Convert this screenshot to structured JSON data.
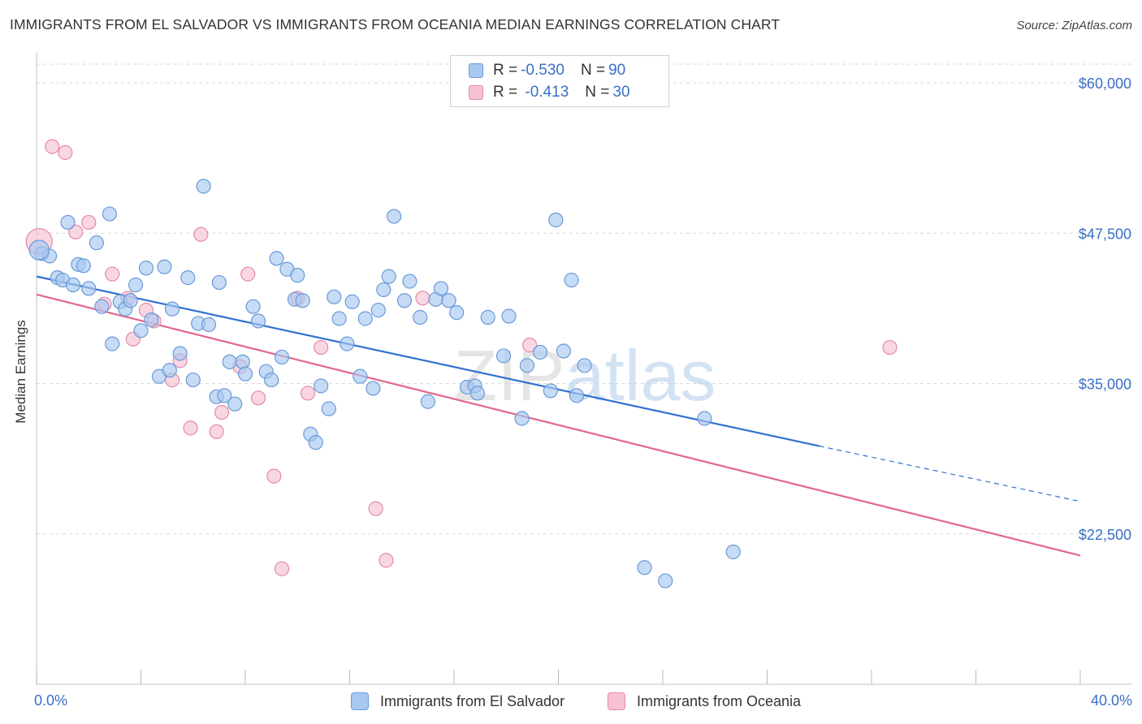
{
  "title": "IMMIGRANTS FROM EL SALVADOR VS IMMIGRANTS FROM OCEANIA MEDIAN EARNINGS CORRELATION CHART",
  "source": "Source: ZipAtlas.com",
  "watermark": "ZIPatlas",
  "legend_top": {
    "rows": [
      {
        "r_label": "R = ",
        "r_value": "-0.530",
        "n_label": "N = ",
        "n_value": "90",
        "color": "#a8c8f0"
      },
      {
        "r_label": "R = ",
        "r_value": " -0.413",
        "n_label": "N = ",
        "n_value": "30",
        "color": "#f6b8cb"
      }
    ]
  },
  "colors": {
    "blue_fill": "#a8c8f0",
    "blue_stroke": "#6a9ad8",
    "blue_line": "#2f72d0",
    "pink_fill": "#f6c2d3",
    "pink_stroke": "#e48aa8",
    "pink_line": "#e0668f",
    "axis_text": "#3a6fc7",
    "grid": "#d9d9d9"
  },
  "chart_data": {
    "type": "scatter",
    "title": "IMMIGRANTS FROM EL SALVADOR VS IMMIGRANTS FROM OCEANIA MEDIAN EARNINGS CORRELATION CHART",
    "xlabel": "",
    "ylabel": "Median Earnings",
    "xlim": [
      0,
      40
    ],
    "ylim": [
      10000,
      62500
    ],
    "x_tick_labels": [
      "0.0%",
      "40.0%"
    ],
    "y_ticks": [
      22500,
      35000,
      47500,
      60000
    ],
    "y_tick_labels": [
      "$22,500",
      "$35,000",
      "$47,500",
      "$60,000"
    ],
    "grid": true,
    "series": [
      {
        "name": "Immigrants from El Salvador",
        "color": "#a8c8f0",
        "trend": {
          "x0": 0,
          "y0": 43900,
          "x1": 30,
          "y1": 29800,
          "dashed_to_x": 40,
          "dashed_to_y": 25200
        },
        "points": [
          [
            0.2,
            45800
          ],
          [
            0.5,
            45600
          ],
          [
            0.8,
            43800
          ],
          [
            1.0,
            43600
          ],
          [
            1.2,
            48400
          ],
          [
            1.4,
            43200
          ],
          [
            1.6,
            44900
          ],
          [
            1.8,
            44800
          ],
          [
            2.0,
            42900
          ],
          [
            2.3,
            46700
          ],
          [
            2.5,
            41400
          ],
          [
            2.8,
            49100
          ],
          [
            2.9,
            38300
          ],
          [
            3.2,
            41800
          ],
          [
            3.4,
            41200
          ],
          [
            3.6,
            41900
          ],
          [
            3.8,
            43200
          ],
          [
            4.0,
            39400
          ],
          [
            4.2,
            44600
          ],
          [
            4.4,
            40300
          ],
          [
            4.7,
            35600
          ],
          [
            4.9,
            44700
          ],
          [
            5.1,
            36100
          ],
          [
            5.2,
            41200
          ],
          [
            5.5,
            37500
          ],
          [
            5.8,
            43800
          ],
          [
            6.0,
            35300
          ],
          [
            6.2,
            40000
          ],
          [
            6.4,
            51400
          ],
          [
            6.6,
            39900
          ],
          [
            6.9,
            33900
          ],
          [
            7.0,
            43400
          ],
          [
            7.2,
            34000
          ],
          [
            7.4,
            36800
          ],
          [
            7.6,
            33300
          ],
          [
            7.9,
            36800
          ],
          [
            8.0,
            35800
          ],
          [
            8.3,
            41400
          ],
          [
            8.5,
            40200
          ],
          [
            8.8,
            36000
          ],
          [
            9.0,
            35300
          ],
          [
            9.2,
            45400
          ],
          [
            9.4,
            37200
          ],
          [
            9.6,
            44500
          ],
          [
            9.9,
            42000
          ],
          [
            10.0,
            44000
          ],
          [
            10.2,
            41900
          ],
          [
            10.5,
            30800
          ],
          [
            10.7,
            30100
          ],
          [
            10.9,
            34800
          ],
          [
            11.2,
            32900
          ],
          [
            11.4,
            42200
          ],
          [
            11.6,
            40400
          ],
          [
            11.9,
            38300
          ],
          [
            12.1,
            41800
          ],
          [
            12.4,
            35600
          ],
          [
            12.6,
            40400
          ],
          [
            12.9,
            34600
          ],
          [
            13.1,
            41100
          ],
          [
            13.3,
            42800
          ],
          [
            13.5,
            43900
          ],
          [
            13.7,
            48900
          ],
          [
            14.1,
            41900
          ],
          [
            14.3,
            43500
          ],
          [
            14.7,
            40500
          ],
          [
            15.0,
            33500
          ],
          [
            15.3,
            42000
          ],
          [
            15.5,
            42900
          ],
          [
            15.8,
            41900
          ],
          [
            16.1,
            40900
          ],
          [
            16.5,
            34700
          ],
          [
            16.8,
            34800
          ],
          [
            16.9,
            34200
          ],
          [
            17.3,
            40500
          ],
          [
            17.9,
            37300
          ],
          [
            18.1,
            40600
          ],
          [
            18.6,
            32100
          ],
          [
            18.8,
            36500
          ],
          [
            19.3,
            37600
          ],
          [
            19.7,
            34400
          ],
          [
            19.9,
            48600
          ],
          [
            20.2,
            37700
          ],
          [
            20.5,
            43600
          ],
          [
            20.7,
            34000
          ],
          [
            21.0,
            36500
          ],
          [
            23.3,
            19700
          ],
          [
            24.1,
            18600
          ],
          [
            25.6,
            32100
          ],
          [
            26.7,
            21000
          ],
          [
            0.1,
            46100
          ]
        ]
      },
      {
        "name": "Immigrants from Oceania",
        "color": "#f6b8cb",
        "trend": {
          "x0": 0,
          "y0": 42400,
          "x1": 40,
          "y1": 20700
        },
        "points": [
          [
            0.1,
            46800
          ],
          [
            0.6,
            54700
          ],
          [
            1.1,
            54200
          ],
          [
            1.5,
            47600
          ],
          [
            2.0,
            48400
          ],
          [
            2.6,
            41600
          ],
          [
            2.9,
            44100
          ],
          [
            3.5,
            42100
          ],
          [
            3.7,
            38700
          ],
          [
            4.2,
            41100
          ],
          [
            4.5,
            40200
          ],
          [
            5.2,
            35300
          ],
          [
            5.5,
            36900
          ],
          [
            5.9,
            31300
          ],
          [
            6.3,
            47400
          ],
          [
            6.9,
            31000
          ],
          [
            7.1,
            32600
          ],
          [
            7.8,
            36400
          ],
          [
            8.1,
            44100
          ],
          [
            8.5,
            33800
          ],
          [
            9.1,
            27300
          ],
          [
            9.4,
            19600
          ],
          [
            10.0,
            42100
          ],
          [
            10.4,
            34200
          ],
          [
            10.9,
            38000
          ],
          [
            13.0,
            24600
          ],
          [
            13.4,
            20300
          ],
          [
            14.8,
            42100
          ],
          [
            18.9,
            38200
          ],
          [
            32.7,
            38000
          ]
        ]
      }
    ]
  }
}
